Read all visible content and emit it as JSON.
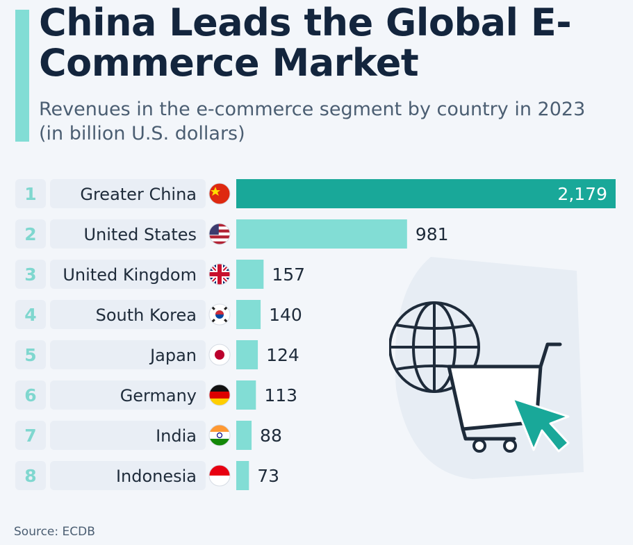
{
  "title": "China Leads the Global E-Commerce Market",
  "subtitle": "Revenues in the e-commerce segment by country in 2023 (in billion U.S. dollars)",
  "source": "Source: ECDB",
  "colors": {
    "highlight": "#19a899",
    "bar": "#82ddd5",
    "rank": "#7fd7cf",
    "label_bg": "#e9eef5",
    "text": "#1e2b3a"
  },
  "chart_data": {
    "type": "bar",
    "orientation": "horizontal",
    "title": "China Leads the Global E-Commerce Market",
    "subtitle": "Revenues in the e-commerce segment by country in 2023 (in billion U.S. dollars)",
    "categories": [
      "Greater China",
      "United States",
      "United Kingdom",
      "South Korea",
      "Japan",
      "Germany",
      "India",
      "Indonesia"
    ],
    "ranks": [
      "1",
      "2",
      "3",
      "4",
      "5",
      "6",
      "7",
      "8"
    ],
    "values": [
      2179,
      981,
      157,
      140,
      124,
      113,
      88,
      73
    ],
    "value_labels": [
      "2,179",
      "981",
      "157",
      "140",
      "124",
      "113",
      "88",
      "73"
    ],
    "flag_icons": [
      "china-flag-icon",
      "usa-flag-icon",
      "uk-flag-icon",
      "south-korea-flag-icon",
      "japan-flag-icon",
      "germany-flag-icon",
      "india-flag-icon",
      "indonesia-flag-icon"
    ],
    "highlight_index": 0,
    "xlim": [
      0,
      2179
    ],
    "grid": false,
    "legend": "none"
  }
}
